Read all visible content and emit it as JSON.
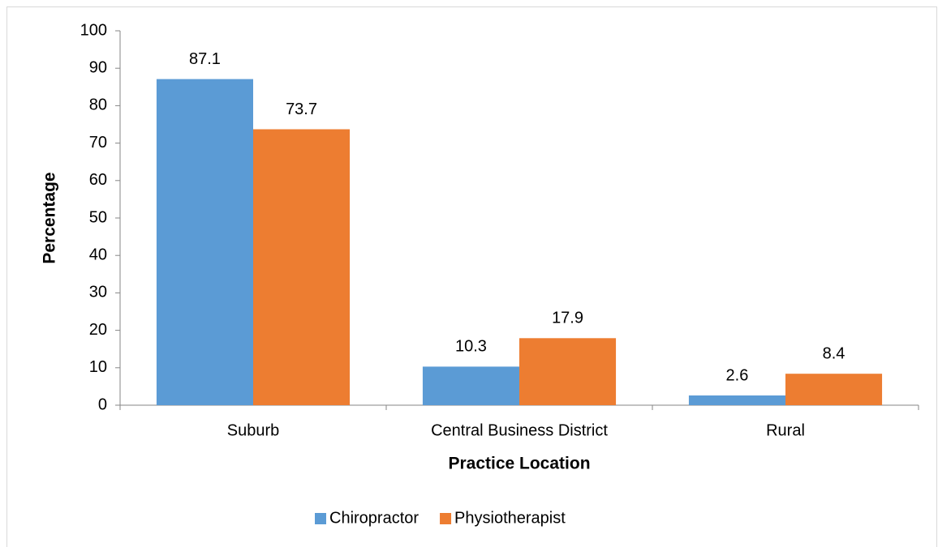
{
  "chart_data": {
    "type": "bar",
    "x_label": "Practice Location",
    "y_label": "Percentage",
    "categories": [
      "Suburb",
      "Central Business District",
      "Rural"
    ],
    "series": [
      {
        "name": "Chiropractor",
        "color": "#5b9bd5",
        "values": [
          87.1,
          10.3,
          2.6
        ]
      },
      {
        "name": "Physiotherapist",
        "color": "#ed7d31",
        "values": [
          73.7,
          17.9,
          8.4
        ]
      }
    ],
    "ylim": [
      0,
      100
    ],
    "yticks": [
      0,
      10,
      20,
      30,
      40,
      50,
      60,
      70,
      80,
      90,
      100
    ],
    "grid": false,
    "legend": "bottom"
  }
}
